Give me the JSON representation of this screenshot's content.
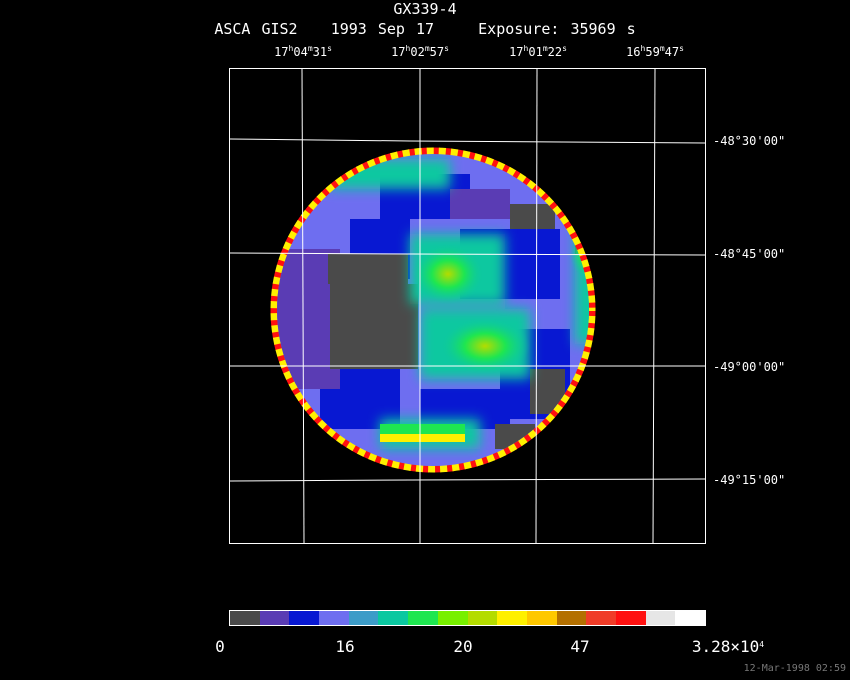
{
  "header": {
    "title": "GX339-4",
    "instrument": "ASCA GIS2",
    "date": "1993 Sep 17",
    "exposure": "Exposure: 35969 s"
  },
  "ra_labels": [
    {
      "h": "17",
      "m": "04",
      "s": "31"
    },
    {
      "h": "17",
      "m": "02",
      "s": "57"
    },
    {
      "h": "17",
      "m": "01",
      "s": "22"
    },
    {
      "h": "16",
      "m": "59",
      "s": "47"
    }
  ],
  "dec_labels": [
    "-48°30'00\"",
    "-48°45'00\"",
    "-49°00'00\"",
    "-49°15'00\""
  ],
  "colorbar": {
    "colors": [
      "#4a4a4a",
      "#5a3cb4",
      "#0818d2",
      "#6e6ef0",
      "#3c9cc8",
      "#0ac8a0",
      "#1ee650",
      "#78f000",
      "#b4dc00",
      "#fff000",
      "#ffc800",
      "#b47000",
      "#f03c28",
      "#ff1010",
      "#e6e6e6",
      "#ffffff"
    ],
    "labels": [
      "0",
      "16",
      "20",
      "47"
    ],
    "max_mantissa": "3.28×10",
    "max_exponent": "4"
  },
  "footer": {
    "timestamp": "12-Mar-1998 02:59"
  }
}
